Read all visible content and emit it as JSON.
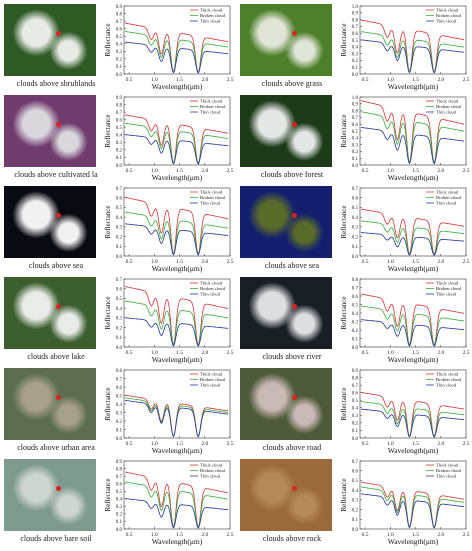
{
  "labels": {
    "ylabel": "Reflectance",
    "xlabel": "Wavelength(μm)",
    "legend": [
      "Thick cloud",
      "Broken cloud",
      "Thin cloud"
    ],
    "yticks": [
      "0.0",
      "0.1",
      "0.2",
      "0.3",
      "0.4",
      "0.5",
      "0.6",
      "0.7",
      "0.8",
      "0.9",
      "1.0"
    ],
    "xticks": [
      "0.5",
      "1.0",
      "1.5",
      "2.0",
      "2.5"
    ]
  },
  "colors": {
    "thick": "#d23a3a",
    "broken": "#3fae3f",
    "thin": "#2a3a9a"
  },
  "bands_um": [
    0.45,
    0.55,
    0.65,
    0.75,
    0.85,
    0.9,
    0.94,
    1.0,
    1.05,
    1.1,
    1.14,
    1.2,
    1.27,
    1.34,
    1.38,
    1.44,
    1.5,
    1.56,
    1.62,
    1.68,
    1.75,
    1.82,
    1.87,
    1.92,
    2.0,
    2.1,
    2.2,
    2.3,
    2.4,
    2.45
  ],
  "chart_data": [
    {
      "type": "line",
      "caption": "clouds above shrublands",
      "ylim": [
        0.0,
        0.9
      ],
      "xlim": [
        0.4,
        2.5
      ],
      "series": [
        {
          "name": "Thick cloud",
          "base": 0.67
        },
        {
          "name": "Broken cloud",
          "base": 0.56
        },
        {
          "name": "Thin cloud",
          "base": 0.42
        }
      ]
    },
    {
      "type": "line",
      "caption": "clouds above grass",
      "ylim": [
        0.0,
        1.0
      ],
      "xlim": [
        0.4,
        2.5
      ],
      "series": [
        {
          "name": "Thick cloud",
          "base": 0.79
        },
        {
          "name": "Broken cloud",
          "base": 0.62
        },
        {
          "name": "Thin cloud",
          "base": 0.5
        }
      ]
    },
    {
      "type": "line",
      "caption": "clouds above cultivated la",
      "ylim": [
        0.0,
        0.9
      ],
      "xlim": [
        0.4,
        2.5
      ],
      "series": [
        {
          "name": "Thick cloud",
          "base": 0.66
        },
        {
          "name": "Broken cloud",
          "base": 0.55
        },
        {
          "name": "Thin cloud",
          "base": 0.4
        }
      ]
    },
    {
      "type": "line",
      "caption": "clouds above forest",
      "ylim": [
        0.0,
        1.0
      ],
      "xlim": [
        0.4,
        2.5
      ],
      "series": [
        {
          "name": "Thick cloud",
          "base": 0.94
        },
        {
          "name": "Broken cloud",
          "base": 0.78
        },
        {
          "name": "Thin cloud",
          "base": 0.55
        }
      ]
    },
    {
      "type": "line",
      "caption": "clouds above sea",
      "ylim": [
        0.0,
        0.7
      ],
      "xlim": [
        0.4,
        2.5
      ],
      "series": [
        {
          "name": "Thick cloud",
          "base": 0.6
        },
        {
          "name": "Broken cloud",
          "base": 0.45
        },
        {
          "name": "Thin cloud",
          "base": 0.33
        }
      ]
    },
    {
      "type": "line",
      "caption": "clouds above sea",
      "ylim": [
        0.0,
        0.7
      ],
      "xlim": [
        0.4,
        2.5
      ],
      "series": [
        {
          "name": "Thick cloud",
          "base": 0.48
        },
        {
          "name": "Broken cloud",
          "base": 0.36
        },
        {
          "name": "Thin cloud",
          "base": 0.24
        }
      ]
    },
    {
      "type": "line",
      "caption": "clouds above lake",
      "ylim": [
        0.0,
        0.7
      ],
      "xlim": [
        0.4,
        2.5
      ],
      "series": [
        {
          "name": "Thick cloud",
          "base": 0.62
        },
        {
          "name": "Broken cloud",
          "base": 0.47
        },
        {
          "name": "Thin cloud",
          "base": 0.3
        }
      ]
    },
    {
      "type": "line",
      "caption": "clouds above river",
      "ylim": [
        0.0,
        0.8
      ],
      "xlim": [
        0.4,
        2.5
      ],
      "series": [
        {
          "name": "Thick cloud",
          "base": 0.62
        },
        {
          "name": "Broken cloud",
          "base": 0.48
        },
        {
          "name": "Thin cloud",
          "base": 0.32
        }
      ]
    },
    {
      "type": "line",
      "caption": "clouds above urban area",
      "ylim": [
        0.0,
        0.8
      ],
      "xlim": [
        0.4,
        2.5
      ],
      "series": [
        {
          "name": "Thick cloud",
          "base": 0.5
        },
        {
          "name": "Broken cloud",
          "base": 0.47
        },
        {
          "name": "Thin cloud",
          "base": 0.44
        }
      ]
    },
    {
      "type": "line",
      "caption": "clouds above road",
      "ylim": [
        0.0,
        0.9
      ],
      "xlim": [
        0.4,
        2.5
      ],
      "series": [
        {
          "name": "Thick cloud",
          "base": 0.6
        },
        {
          "name": "Broken cloud",
          "base": 0.48
        },
        {
          "name": "Thin cloud",
          "base": 0.38
        }
      ]
    },
    {
      "type": "line",
      "caption": "clouds above bare soil",
      "ylim": [
        0.0,
        0.9
      ],
      "xlim": [
        0.4,
        2.5
      ],
      "series": [
        {
          "name": "Thick cloud",
          "base": 0.75
        },
        {
          "name": "Broken cloud",
          "base": 0.62
        },
        {
          "name": "Thin cloud",
          "base": 0.4
        }
      ]
    },
    {
      "type": "line",
      "caption": "clouds above rock",
      "ylim": [
        0.0,
        0.7
      ],
      "xlim": [
        0.4,
        2.5
      ],
      "series": [
        {
          "name": "Thick cloud",
          "base": 0.48
        },
        {
          "name": "Broken cloud",
          "base": 0.43
        },
        {
          "name": "Thin cloud",
          "base": 0.36
        }
      ]
    }
  ],
  "photo_colors": [
    [
      "#2f5a26",
      "#e8eae6"
    ],
    [
      "#4e7f2b",
      "#dfe4d6"
    ],
    [
      "#6f3c6d",
      "#d9d6dc"
    ],
    [
      "#1e3a1a",
      "#e5e7e6"
    ],
    [
      "#0a0a12",
      "#f1f1f1"
    ],
    [
      "#14206e",
      "#5a6a2a"
    ],
    [
      "#3d5e2e",
      "#e9ebe9"
    ],
    [
      "#1a1f26",
      "#dcdfe0"
    ],
    [
      "#5d6e50",
      "#a7a08c"
    ],
    [
      "#4e5a3a",
      "#c9b9b6"
    ],
    [
      "#7e9a8d",
      "#cfd6cf"
    ],
    [
      "#9a6a3a",
      "#b48a58"
    ]
  ]
}
